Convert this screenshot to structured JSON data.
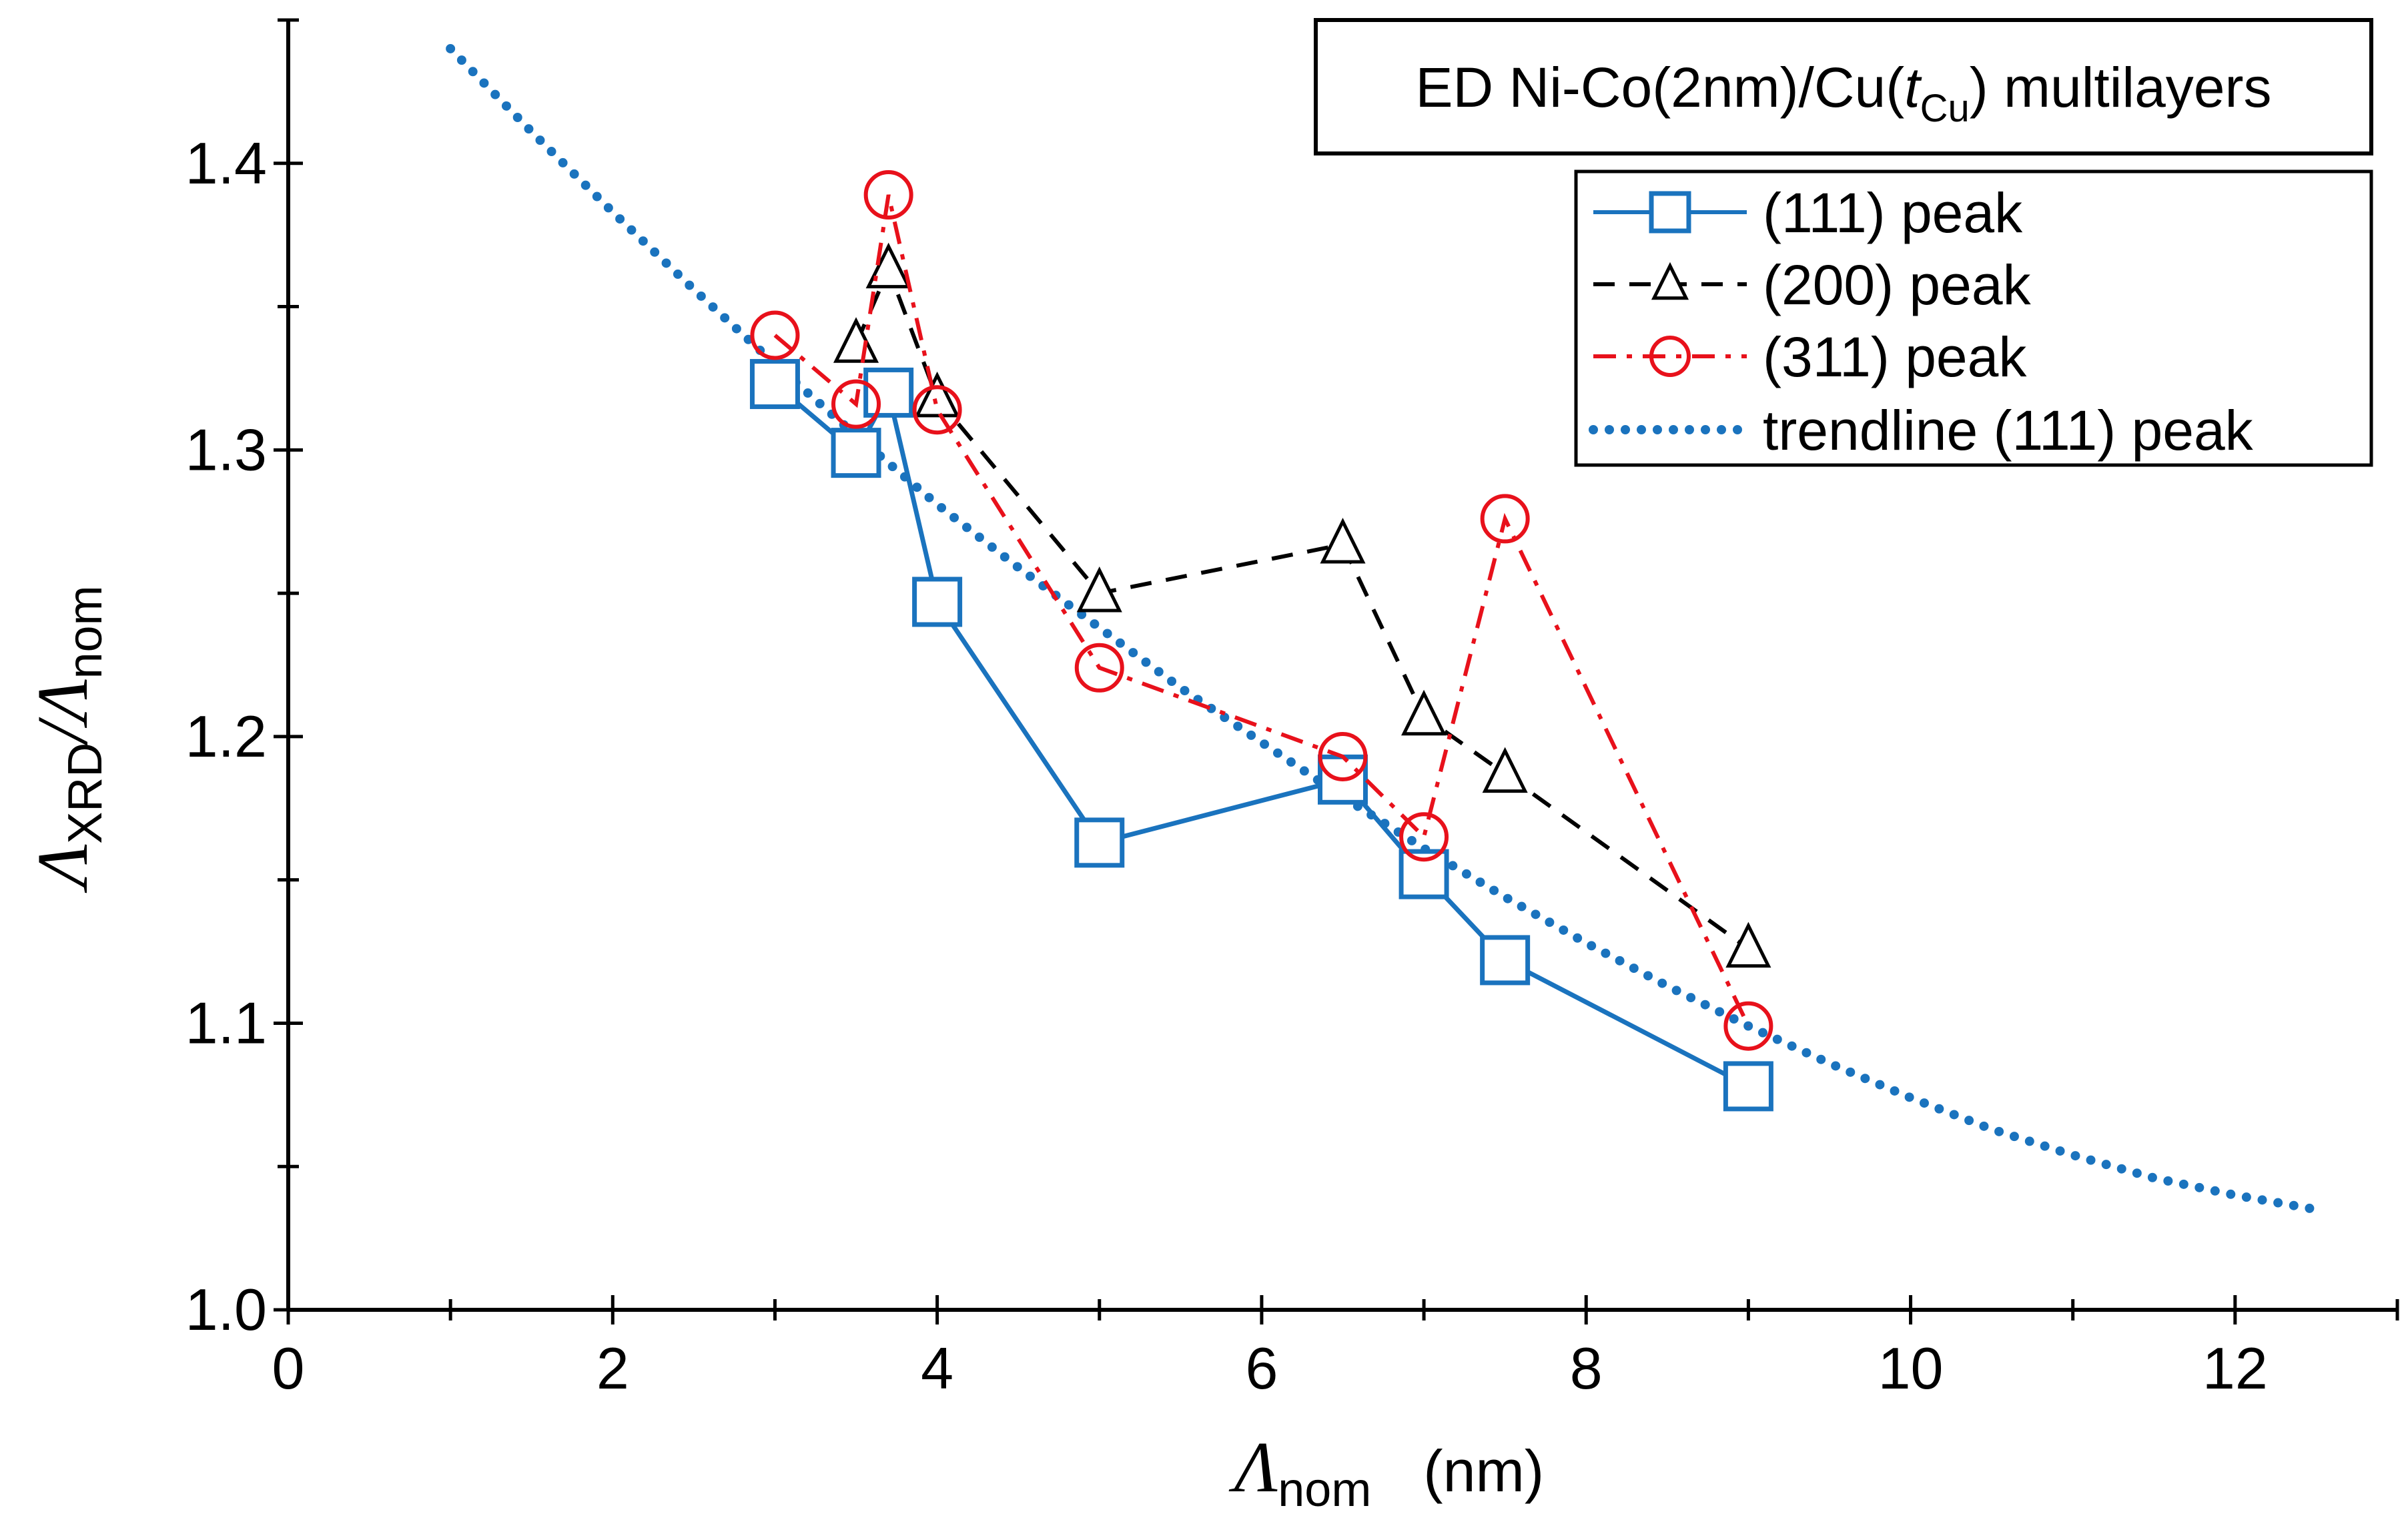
{
  "chart_data": {
    "type": "line",
    "title": {
      "prefix": "ED Ni-Co(2nm)/Cu(",
      "var": "t",
      "var_sub": "Cu",
      "suffix": ") multilayers"
    },
    "xlabel": {
      "symbol": "Λ",
      "sub": "nom",
      "unit": "(nm)"
    },
    "ylabel": {
      "symbol1": "Λ",
      "sub1": "XRD",
      "slash": "/",
      "symbol2": "Λ",
      "sub2": "nom"
    },
    "xlim": [
      0,
      13
    ],
    "ylim": [
      1.0,
      1.45
    ],
    "x_ticks": [
      0,
      2,
      4,
      6,
      8,
      10,
      12
    ],
    "x_tick_labels": [
      "0",
      "2",
      "4",
      "6",
      "8",
      "10",
      "12"
    ],
    "y_ticks": [
      1.0,
      1.1,
      1.2,
      1.3,
      1.4
    ],
    "y_tick_labels": [
      "1.0",
      "1.1",
      "1.2",
      "1.3",
      "1.4"
    ],
    "legend_position": "top-right",
    "series": [
      {
        "name": "(111) peak",
        "color": "#1a73be",
        "line": "solid",
        "marker": "square",
        "x": [
          3.0,
          3.5,
          3.7,
          4.0,
          5.0,
          6.5,
          7.0,
          7.5,
          9.0
        ],
        "y": [
          1.323,
          1.299,
          1.32,
          1.247,
          1.163,
          1.185,
          1.152,
          1.122,
          1.078
        ]
      },
      {
        "name": "(200) peak",
        "color": "#000000",
        "line": "dashed",
        "marker": "triangle",
        "x": [
          3.5,
          3.7,
          4.0,
          5.0,
          6.5,
          7.0,
          7.5,
          9.0
        ],
        "y": [
          1.337,
          1.363,
          1.318,
          1.25,
          1.267,
          1.207,
          1.187,
          1.126
        ]
      },
      {
        "name": "(311) peak",
        "color": "#e8111b",
        "line": "dashdot",
        "marker": "circle",
        "x": [
          3.0,
          3.5,
          3.7,
          4.0,
          5.0,
          6.5,
          7.0,
          7.5,
          9.0
        ],
        "y": [
          1.34,
          1.316,
          1.389,
          1.314,
          1.224,
          1.193,
          1.165,
          1.276,
          1.099
        ]
      },
      {
        "name": "trendline (111) peak",
        "color": "#1a73be",
        "line": "dotted",
        "marker": "none",
        "x": [
          1.0,
          1.5,
          2.0,
          2.5,
          3.0,
          3.5,
          4.0,
          4.5,
          5.0,
          5.5,
          6.0,
          6.5,
          7.0,
          7.5,
          8.0,
          8.5,
          9.0,
          9.5,
          10.0,
          10.5,
          11.0,
          11.5,
          12.0,
          12.5
        ],
        "y": [
          1.44,
          1.411,
          1.383,
          1.356,
          1.33,
          1.305,
          1.281,
          1.259,
          1.238,
          1.217,
          1.198,
          1.179,
          1.161,
          1.144,
          1.128,
          1.113,
          1.099,
          1.086,
          1.074,
          1.063,
          1.054,
          1.046,
          1.04,
          1.035
        ]
      }
    ]
  }
}
